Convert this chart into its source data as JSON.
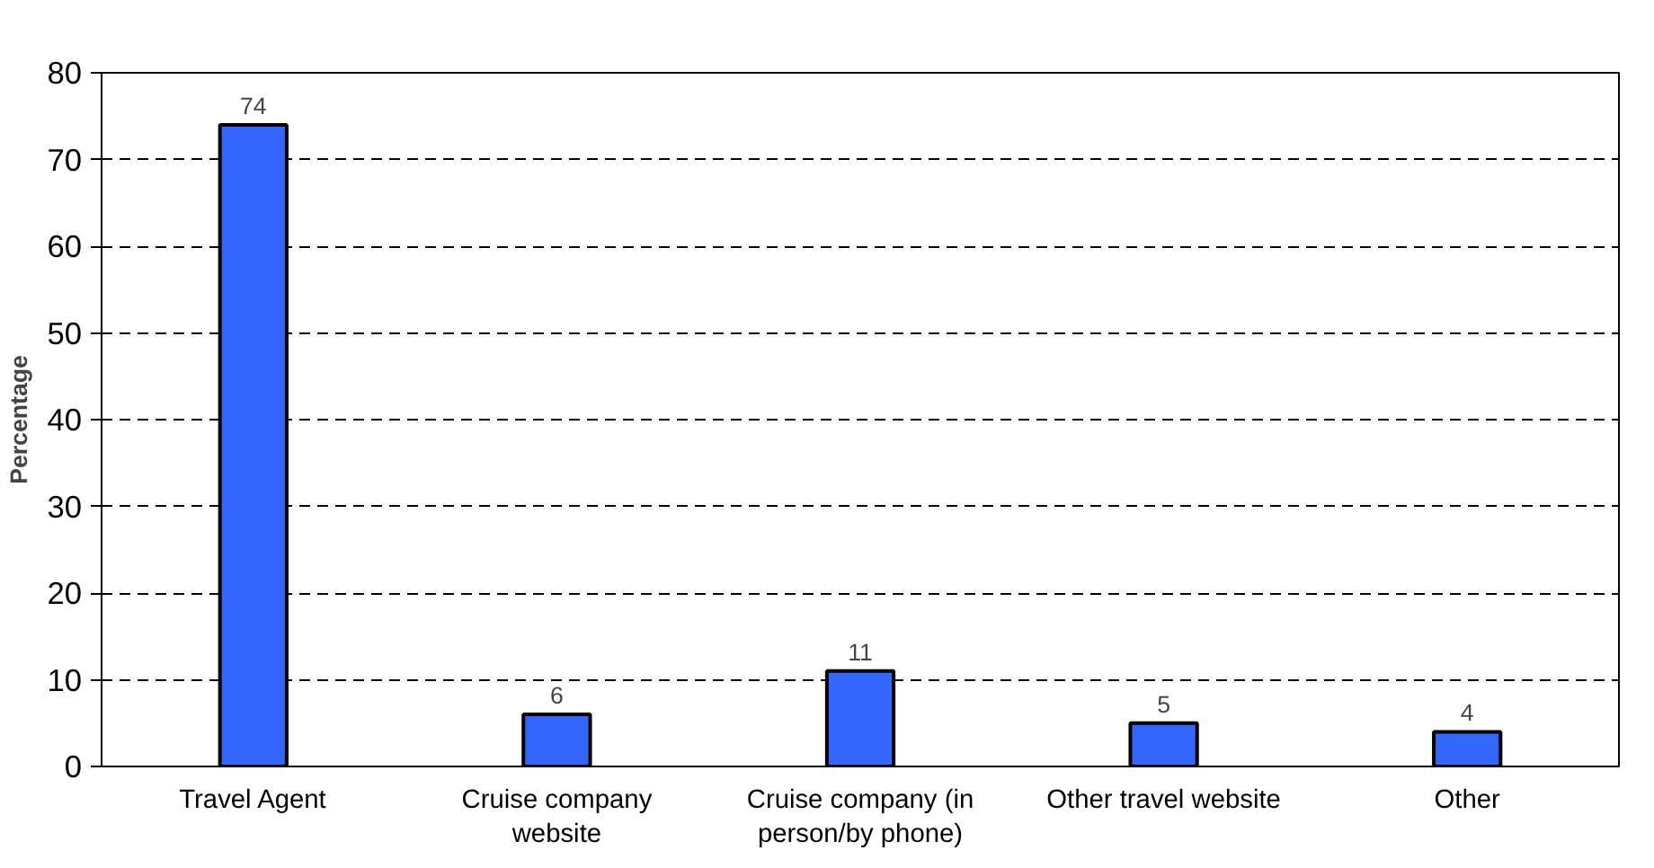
{
  "chart_data": {
    "type": "bar",
    "categories": [
      "Travel Agent",
      "Cruise company website",
      "Cruise company (in person/by phone)",
      "Other travel website",
      "Other"
    ],
    "values": [
      74,
      6,
      11,
      5,
      4
    ],
    "color": "#3366ff",
    "ylabel": "Percentage",
    "ylim": [
      0,
      80
    ],
    "yticks": [
      0,
      10,
      20,
      30,
      40,
      50,
      60,
      70,
      80
    ],
    "grid": "y",
    "data_labels": true
  }
}
